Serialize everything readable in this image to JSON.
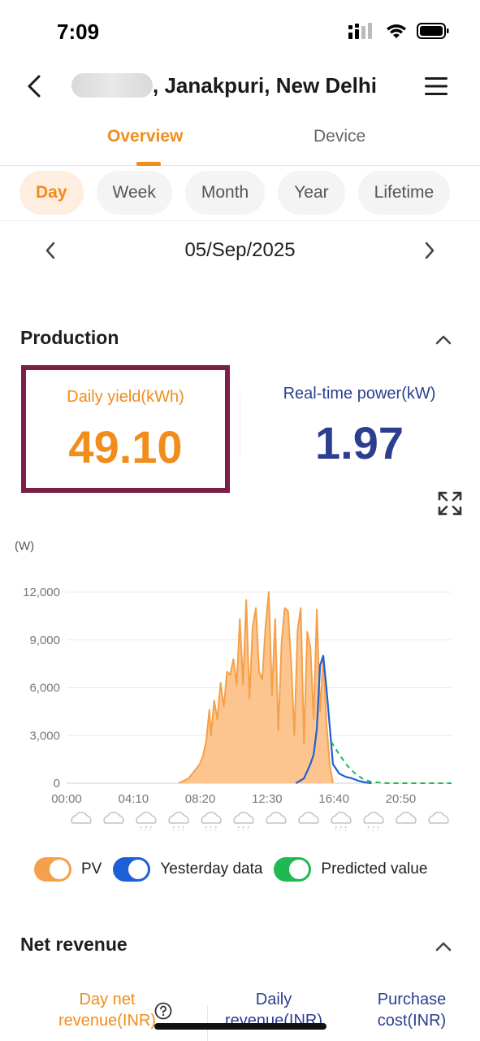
{
  "status_bar": {
    "time": "7:09"
  },
  "header": {
    "title": ", Janakpuri, New Delhi"
  },
  "tabs": [
    {
      "label": "Overview",
      "active": true
    },
    {
      "label": "Device",
      "active": false
    }
  ],
  "periods": [
    "Day",
    "Week",
    "Month",
    "Year",
    "Lifetime"
  ],
  "date": "05/Sep/2025",
  "production": {
    "title": "Production",
    "daily_yield_label": "Daily yield(kWh)",
    "daily_yield_value": "49.10",
    "realtime_power_label": "Real-time power(kW)",
    "realtime_power_value": "1.97"
  },
  "colors": {
    "accent": "#f28c1a",
    "pv": "#f5a04a",
    "yesterday": "#1f5fd6",
    "predicted": "#1fb954",
    "highlight": "#7a1f45"
  },
  "chart_data": {
    "type": "area",
    "ylabel": "(W)",
    "ylim": [
      0,
      12000
    ],
    "y_ticks": [
      "0",
      "3,000",
      "6,000",
      "9,000",
      "12,000"
    ],
    "x_ticks": [
      "00:00",
      "04:10",
      "08:20",
      "12:30",
      "16:40",
      "20:50"
    ],
    "x_range_hours": [
      0,
      24
    ],
    "weather": [
      "cloud",
      "cloud",
      "rain",
      "rain",
      "rain",
      "rain",
      "cloud",
      "cloud",
      "rain",
      "rain",
      "cloud",
      "cloud"
    ],
    "series": [
      {
        "name": "PV",
        "x": [
          7.0,
          7.6,
          8.0,
          8.3,
          8.5,
          8.7,
          8.9,
          9.0,
          9.2,
          9.4,
          9.6,
          9.8,
          10.0,
          10.2,
          10.4,
          10.6,
          10.8,
          11.0,
          11.2,
          11.4,
          11.6,
          11.8,
          12.0,
          12.2,
          12.4,
          12.6,
          12.8,
          13.0,
          13.2,
          13.4,
          13.6,
          13.8,
          14.0,
          14.2,
          14.4,
          14.6,
          14.8,
          15.0,
          15.2,
          15.4,
          15.6,
          15.8,
          16.0,
          16.2,
          16.4,
          16.6
        ],
        "y": [
          0,
          300,
          800,
          1200,
          1700,
          2600,
          4600,
          3000,
          5200,
          4000,
          6300,
          4800,
          7000,
          6800,
          7800,
          6200,
          10300,
          6200,
          11500,
          5300,
          9800,
          11000,
          7000,
          6500,
          9800,
          12000,
          5500,
          10300,
          3300,
          8800,
          11000,
          10800,
          7600,
          3000,
          9600,
          11000,
          2500,
          9500,
          8500,
          4000,
          10900,
          4500,
          8000,
          3800,
          1200,
          0
        ]
      },
      {
        "name": "Yesterday data",
        "x": [
          14.3,
          14.8,
          15.2,
          15.4,
          15.6,
          15.8,
          16.0,
          16.2,
          16.4,
          16.6,
          16.8,
          17.0,
          17.4,
          17.8,
          18.2,
          18.6,
          19.0
        ],
        "y": [
          0,
          300,
          1200,
          1800,
          3400,
          7400,
          8000,
          6000,
          3600,
          1200,
          900,
          600,
          400,
          300,
          150,
          50,
          0
        ]
      },
      {
        "name": "Predicted value",
        "x": [
          16.5,
          17.0,
          17.5,
          18.0,
          18.5,
          19.0,
          20.0,
          21.0,
          22.0,
          23.0,
          24.0
        ],
        "y": [
          2600,
          1800,
          1100,
          600,
          250,
          80,
          0,
          0,
          0,
          0,
          0
        ]
      }
    ]
  },
  "legend": {
    "pv": "PV",
    "yesterday": "Yesterday data",
    "predicted": "Predicted value"
  },
  "net_revenue": {
    "title": "Net revenue",
    "day_net_label": "Day net revenue(INR)",
    "daily_revenue_label": "Daily revenue(INR)",
    "purchase_cost_label": "Purchase cost(INR)"
  }
}
